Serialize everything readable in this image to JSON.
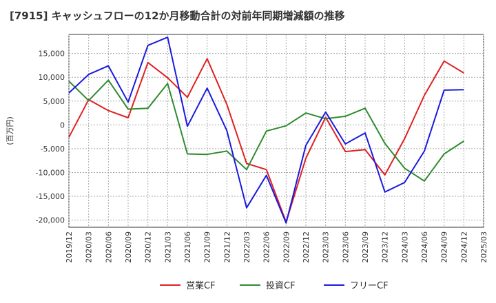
{
  "chart_data": {
    "type": "line",
    "title": "[7915]  キャッシュフローの12か月移動合計の対前年同期増減額の推移",
    "ylabel": "(百万円)",
    "xlabel": "",
    "ylim": [
      -21500,
      19000
    ],
    "yticks": [
      15000,
      10000,
      5000,
      0,
      -5000,
      -10000,
      -15000,
      -20000
    ],
    "ytick_labels": [
      "15,000",
      "10,000",
      "5,000",
      "0",
      "-5,000",
      "-10,000",
      "-15,000",
      "-20,000"
    ],
    "x_tick_labels": [
      "2019/12",
      "2020/03",
      "2020/06",
      "2020/09",
      "2020/12",
      "2021/03",
      "2021/06",
      "2021/09",
      "2021/12",
      "2022/03",
      "2022/06",
      "2022/09",
      "2022/12",
      "2023/03",
      "2023/06",
      "2023/09",
      "2023/12",
      "2024/03",
      "2024/06",
      "2024/09",
      "2024/12",
      "2025/03"
    ],
    "x_points": [
      "2019/12",
      "2020/03",
      "2020/06",
      "2020/09",
      "2020/12",
      "2021/03",
      "2021/06",
      "2021/09",
      "2021/12",
      "2022/03",
      "2022/06",
      "2022/09",
      "2022/12",
      "2023/03",
      "2023/06",
      "2023/09",
      "2023/12",
      "2024/03",
      "2024/06",
      "2024/09",
      "2024/12"
    ],
    "grid": true,
    "legend_position": "bottom",
    "series": [
      {
        "name": "営業CF",
        "color": "#e02020",
        "values": [
          -2600,
          5300,
          3000,
          1500,
          13100,
          9900,
          5800,
          13900,
          4300,
          -8100,
          -9400,
          -20400,
          -7000,
          1600,
          -5600,
          -5200,
          -10500,
          -2900,
          6200,
          13400,
          10900
        ]
      },
      {
        "name": "投資CF",
        "color": "#2e8b2e",
        "values": [
          9200,
          5100,
          9400,
          3300,
          3500,
          8700,
          -6100,
          -6200,
          -5500,
          -9400,
          -1300,
          -200,
          2500,
          1300,
          1800,
          3500,
          -3900,
          -9100,
          -11800,
          -6100,
          -3400
        ]
      },
      {
        "name": "フリーCF",
        "color": "#1a1adf",
        "values": [
          6700,
          10600,
          12400,
          4800,
          16700,
          18400,
          -300,
          7700,
          -1200,
          -17400,
          -10600,
          -20600,
          -4300,
          2700,
          -4000,
          -1700,
          -14100,
          -12100,
          -5500,
          7300,
          7400
        ]
      }
    ]
  }
}
